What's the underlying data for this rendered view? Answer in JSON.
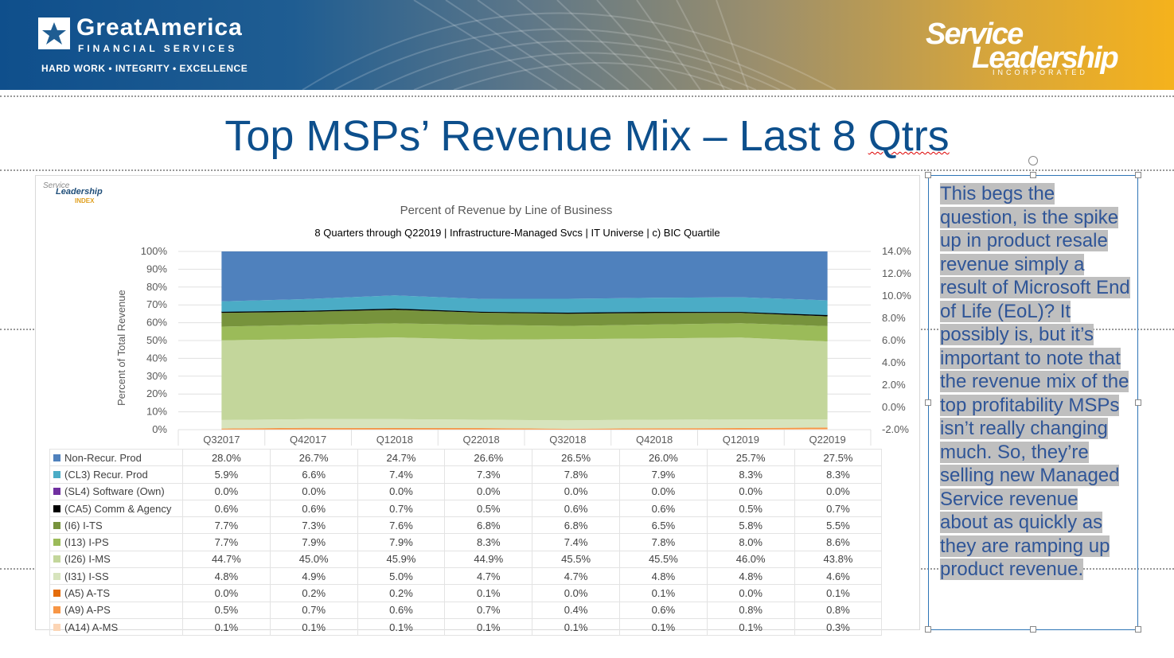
{
  "banner": {
    "ga_name": "GreatAmerica",
    "ga_sub": "FINANCIAL SERVICES",
    "ga_tagline": "HARD WORK • INTEGRITY • EXCELLENCE",
    "sl_line1": "Service",
    "sl_line2": "Leadership",
    "sl_line3": "INCORPORATED"
  },
  "slide_title_main": "Top MSPs’ Revenue Mix – Last 8 ",
  "slide_title_tail": "Qtrs",
  "sli_logo": {
    "line1": "Service",
    "line2": "Leadership",
    "line3": "INDEX"
  },
  "chart_data": {
    "type": "area",
    "title": "Percent of Revenue by Line of Business",
    "subtitle": "8 Quarters through Q22019 | Infrastructure-Managed Svcs | IT Universe | c) BIC Quartile",
    "ylabel": "Percent of Total Revenue",
    "ylim": [
      0,
      100
    ],
    "y_ticks": [
      "0%",
      "10%",
      "20%",
      "30%",
      "40%",
      "50%",
      "60%",
      "70%",
      "80%",
      "90%",
      "100%"
    ],
    "y2_ticks": [
      "-2.0%",
      "0.0%",
      "2.0%",
      "4.0%",
      "6.0%",
      "8.0%",
      "10.0%",
      "12.0%",
      "14.0%"
    ],
    "stacked": true,
    "categories": [
      "Q32017",
      "Q42017",
      "Q12018",
      "Q22018",
      "Q32018",
      "Q42018",
      "Q12019",
      "Q22019"
    ],
    "series": [
      {
        "name": "Non-Recur. Prod",
        "color": "#4f81bd",
        "values": [
          "28.0%",
          "26.7%",
          "24.7%",
          "26.6%",
          "26.5%",
          "26.0%",
          "25.7%",
          "27.5%"
        ]
      },
      {
        "name": "(CL3) Recur. Prod",
        "color": "#4bacc6",
        "values": [
          "5.9%",
          "6.6%",
          "7.4%",
          "7.3%",
          "7.8%",
          "7.9%",
          "8.3%",
          "8.3%"
        ]
      },
      {
        "name": "(SL4) Software (Own)",
        "color": "#7030a0",
        "values": [
          "0.0%",
          "0.0%",
          "0.0%",
          "0.0%",
          "0.0%",
          "0.0%",
          "0.0%",
          "0.0%"
        ]
      },
      {
        "name": "(CA5) Comm & Agency",
        "color": "#000000",
        "values": [
          "0.6%",
          "0.6%",
          "0.7%",
          "0.5%",
          "0.6%",
          "0.6%",
          "0.5%",
          "0.7%"
        ]
      },
      {
        "name": "(I6) I-TS",
        "color": "#77933c",
        "values": [
          "7.7%",
          "7.3%",
          "7.6%",
          "6.8%",
          "6.8%",
          "6.5%",
          "5.8%",
          "5.5%"
        ]
      },
      {
        "name": "(I13) I-PS",
        "color": "#9bbb59",
        "values": [
          "7.7%",
          "7.9%",
          "7.9%",
          "8.3%",
          "7.4%",
          "7.8%",
          "8.0%",
          "8.6%"
        ]
      },
      {
        "name": "(I26) I-MS",
        "color": "#c3d69b",
        "values": [
          "44.7%",
          "45.0%",
          "45.9%",
          "44.9%",
          "45.5%",
          "45.5%",
          "46.0%",
          "43.8%"
        ]
      },
      {
        "name": "(I31) I-SS",
        "color": "#d7e4bd",
        "values": [
          "4.8%",
          "4.9%",
          "5.0%",
          "4.7%",
          "4.7%",
          "4.8%",
          "4.8%",
          "4.6%"
        ]
      },
      {
        "name": "(A5) A-TS",
        "color": "#e46c0a",
        "values": [
          "0.0%",
          "0.2%",
          "0.2%",
          "0.1%",
          "0.0%",
          "0.1%",
          "0.0%",
          "0.1%"
        ]
      },
      {
        "name": "(A9) A-PS",
        "color": "#f79646",
        "values": [
          "0.5%",
          "0.7%",
          "0.6%",
          "0.7%",
          "0.4%",
          "0.6%",
          "0.8%",
          "0.8%"
        ]
      },
      {
        "name": "(A14) A-MS",
        "color": "#fcd5b5",
        "values": [
          "0.1%",
          "0.1%",
          "0.1%",
          "0.1%",
          "0.1%",
          "0.1%",
          "0.1%",
          "0.3%"
        ]
      }
    ]
  },
  "textbox": {
    "text": "This begs the question, is the spike up in product resale revenue simply a result of Microsoft End of Life (EoL)? It possibly is, but it’s important to note that the revenue mix of the top profitability MSPs isn’t really changing much. So, they’re selling new Managed Service revenue about as quickly as they are ramping up product revenue."
  }
}
